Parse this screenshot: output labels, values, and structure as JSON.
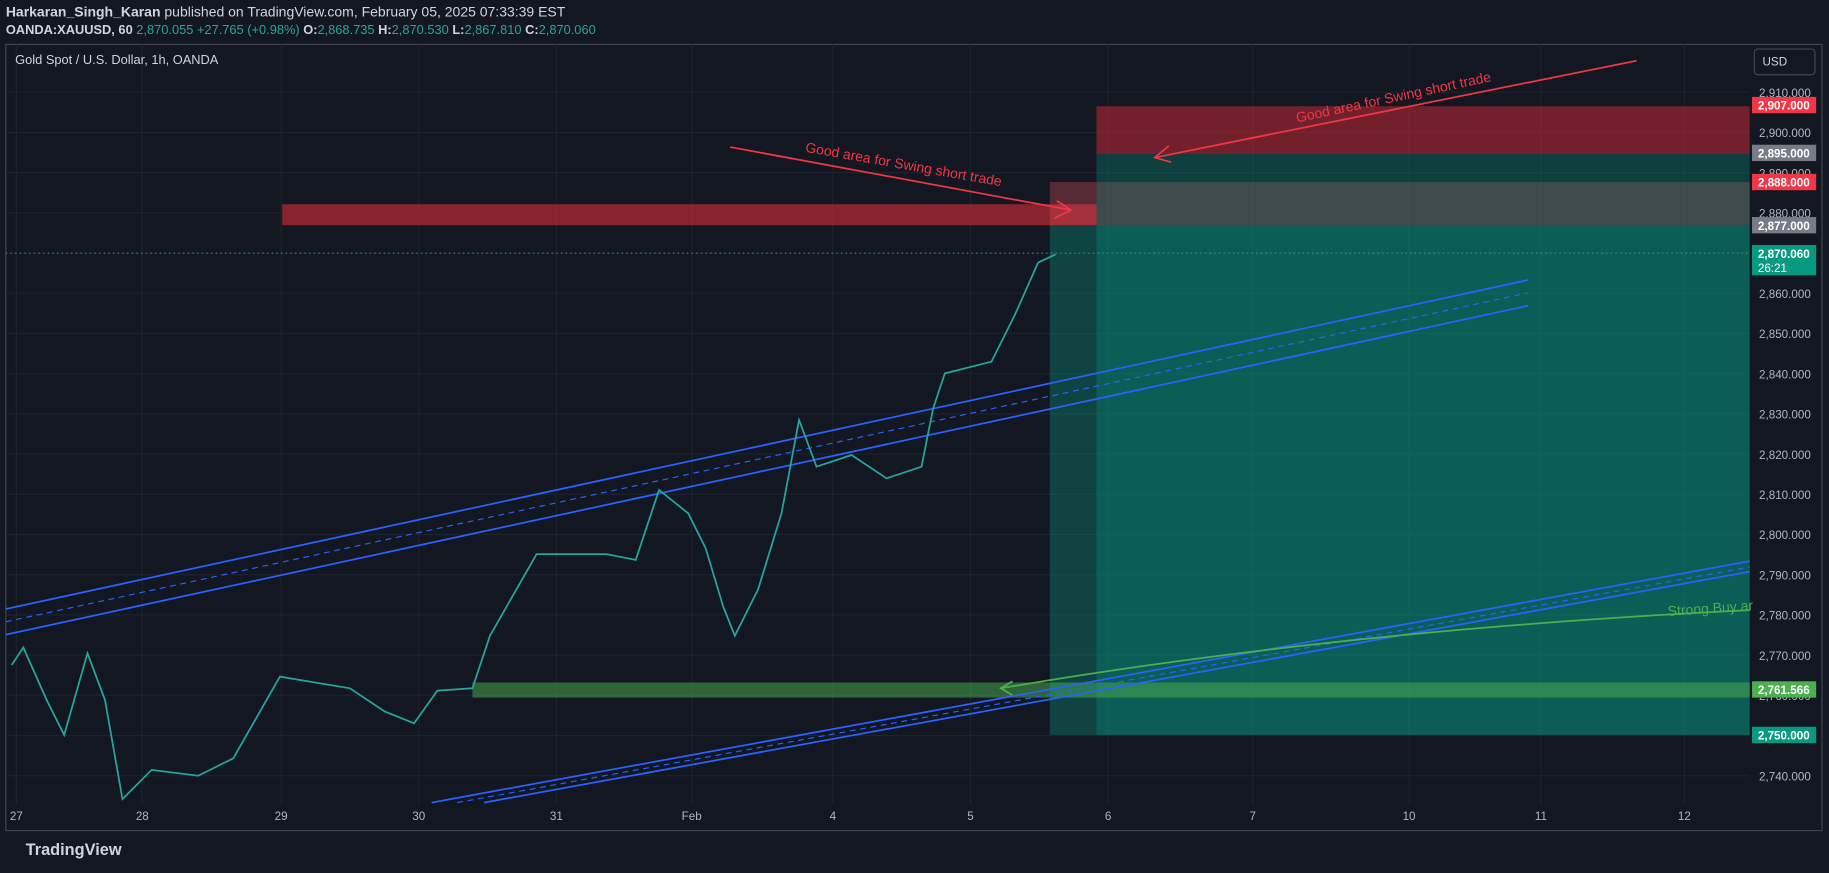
{
  "header": {
    "author": "Harkaran_Singh_Karan",
    "published": "published on TradingView.com, February 05, 2025 07:33:39 EST",
    "symbol": "OANDA:XAUUSD, 60",
    "price": "2,870.055",
    "change": "+27.765 (+0.98%)",
    "o_label": "O:",
    "o": "2,868.735",
    "h_label": "H:",
    "h": "2,870.530",
    "l_label": "L:",
    "l": "2,867.810",
    "c_label": "C:",
    "c": "2,870.060"
  },
  "chart": {
    "title": "Gold Spot / U.S. Dollar, 1h, OANDA",
    "currency": "USD",
    "price_axis": [
      "2,910.000",
      "2,900.000",
      "2,890.000",
      "2,880.000",
      "2,870.000",
      "2,860.000",
      "2,850.000",
      "2,840.000",
      "2,830.000",
      "2,820.000",
      "2,810.000",
      "2,800.000",
      "2,790.000",
      "2,780.000",
      "2,770.000",
      "2,760.000",
      "2,750.000",
      "2,740.000"
    ],
    "price_tags": [
      "2,907.000",
      "2,895.000",
      "2,888.000",
      "2,877.000",
      "2,870.060",
      "2,761.566",
      "2,750.000"
    ],
    "countdown": "26:21",
    "time_axis": [
      "27",
      "28",
      "29",
      "30",
      "31",
      "Feb",
      "4",
      "5",
      "6",
      "7",
      "10",
      "11",
      "12"
    ],
    "annotations": [
      "Good area for Swing short trade",
      "Good area for Swing short trade",
      "Strong Buy ar"
    ]
  },
  "footer": {
    "logo": "TradingView"
  }
}
